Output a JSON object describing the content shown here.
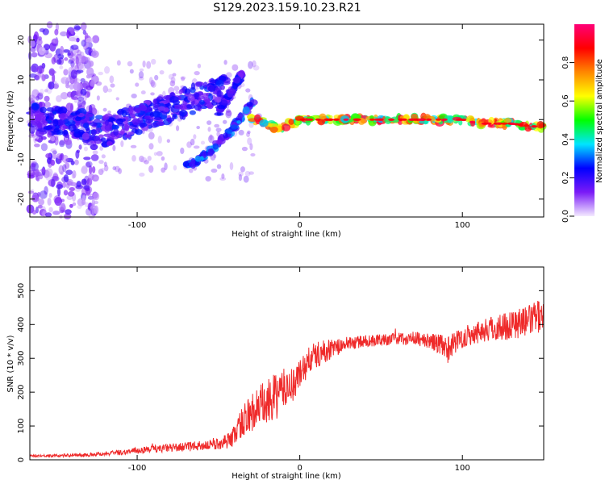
{
  "title": "S129.2023.159.10.23.R21",
  "chart_data": [
    {
      "type": "heatmap",
      "xlabel": "Height of straight line (km)",
      "ylabel": "Frequency (Hz)",
      "xlim": [
        -166,
        150
      ],
      "ylim": [
        -24.5,
        24
      ],
      "x_ticks": [
        -100,
        0,
        100
      ],
      "x_tick_labels": [
        "-100",
        "0",
        "100"
      ],
      "y_ticks": [
        -20,
        -10,
        0,
        10,
        20
      ],
      "y_tick_labels": [
        "-20",
        "-10",
        "0",
        "10",
        "20"
      ],
      "colorbar": {
        "label": "Normalized spectral amplitude",
        "range": [
          0,
          1
        ],
        "ticks": [
          0.0,
          0.2,
          0.4,
          0.6,
          0.8
        ],
        "tick_labels": [
          "0.0",
          "0.2",
          "0.4",
          "0.6",
          "0.8"
        ],
        "colors": [
          "#f3eaff",
          "#7a1af7",
          "#0000ff",
          "#00e5ff",
          "#00ff00",
          "#ffff00",
          "#ff8800",
          "#ff0000",
          "#ff0077"
        ]
      },
      "features": [
        {
          "kind": "scatter-cloud",
          "x_range": [
            -166,
            -125
          ],
          "y_range": [
            -24.5,
            24
          ],
          "amplitude": 0.1
        },
        {
          "kind": "band",
          "points": [
            [
              -166,
              0
            ],
            [
              -140,
              -1
            ],
            [
              -120,
              -3
            ],
            [
              -100,
              0
            ],
            [
              -80,
              3
            ],
            [
              -60,
              6
            ],
            [
              -45,
              8
            ]
          ],
          "amplitude": 0.2
        },
        {
          "kind": "branch",
          "points": [
            [
              -70,
              -12
            ],
            [
              -58,
              -9
            ],
            [
              -45,
              -4
            ],
            [
              -35,
              1
            ],
            [
              -28,
              5
            ]
          ],
          "amplitude": 0.25
        },
        {
          "kind": "branch",
          "points": [
            [
              -50,
              2
            ],
            [
              -42,
              7
            ],
            [
              -35,
              12
            ]
          ],
          "amplitude": 0.2
        },
        {
          "kind": "line",
          "points": [
            [
              -30,
              0
            ],
            [
              -20,
              -1
            ],
            [
              -15,
              -2
            ],
            [
              -5,
              -1
            ],
            [
              0,
              0
            ],
            [
              20,
              0
            ],
            [
              40,
              0
            ],
            [
              60,
              0
            ],
            [
              80,
              0
            ],
            [
              100,
              0
            ],
            [
              110,
              -1
            ],
            [
              130,
              -1
            ],
            [
              150,
              -2
            ]
          ],
          "amplitude": 0.7
        }
      ]
    },
    {
      "type": "line",
      "xlabel": "Height of straight line (km)",
      "ylabel": "SNR (10 * v/v)",
      "xlim": [
        -166,
        150
      ],
      "ylim": [
        0,
        570
      ],
      "x_ticks": [
        -100,
        0,
        100
      ],
      "x_tick_labels": [
        "-100",
        "0",
        "100"
      ],
      "y_ticks": [
        0,
        100,
        200,
        300,
        400,
        500
      ],
      "y_tick_labels": [
        "0",
        "100",
        "200",
        "300",
        "400",
        "500"
      ],
      "series": [
        {
          "color": "#ef2a2a",
          "x": [
            -166,
            -150,
            -130,
            -110,
            -95,
            -80,
            -65,
            -52,
            -42,
            -38,
            -34,
            -30,
            -26,
            -22,
            -18,
            -14,
            -10,
            -5,
            0,
            5,
            10,
            15,
            20,
            25,
            30,
            40,
            50,
            60,
            70,
            80,
            85,
            90,
            94,
            100,
            110,
            120,
            130,
            140,
            150
          ],
          "y": [
            12,
            12,
            15,
            22,
            30,
            35,
            40,
            45,
            60,
            95,
            120,
            140,
            150,
            160,
            175,
            190,
            210,
            220,
            250,
            290,
            310,
            320,
            330,
            335,
            345,
            350,
            355,
            358,
            360,
            350,
            345,
            320,
            345,
            360,
            380,
            390,
            400,
            410,
            430
          ],
          "noise": [
            3,
            4,
            5,
            8,
            10,
            12,
            14,
            16,
            25,
            40,
            50,
            60,
            70,
            70,
            70,
            70,
            60,
            55,
            50,
            45,
            40,
            35,
            28,
            22,
            20,
            18,
            18,
            18,
            20,
            22,
            30,
            45,
            35,
            30,
            35,
            40,
            45,
            45,
            50
          ]
        }
      ]
    }
  ]
}
